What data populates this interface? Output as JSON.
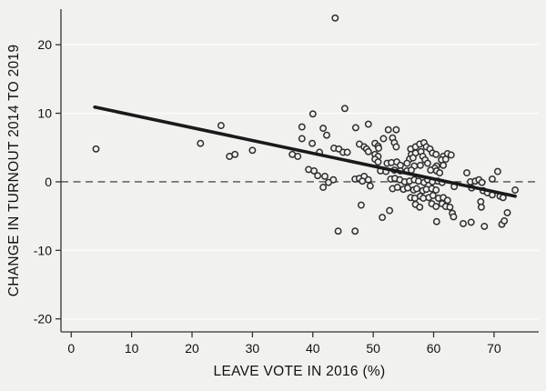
{
  "chart_data": {
    "type": "scatter",
    "title": "",
    "xlabel": "LEAVE VOTE IN 2016 (%)",
    "ylabel": "CHANGE IN TURNOUT 2014 TO 2019",
    "xlim": [
      -1.7,
      77.4
    ],
    "ylim": [
      -21.9,
      25.2
    ],
    "x_ticks": [
      0,
      10,
      20,
      30,
      40,
      50,
      60,
      70
    ],
    "y_ticks": [
      -20,
      -10,
      0,
      10,
      20
    ],
    "grid": "horizontal-only",
    "legend": "none",
    "reference_line": {
      "y": 0,
      "style": "dashed"
    },
    "fit_line": {
      "x1": 3.9,
      "y1": 10.9,
      "x2": 73.5,
      "y2": -2.1,
      "description": "linear fit, slope approx -0.19"
    },
    "marker": {
      "shape": "hollow-circle",
      "radius_px": 3.2
    },
    "colors": {
      "background": "#f1f1ef",
      "grid": "#fbfbfa",
      "marker": "#2e2e2e",
      "fit_line": "#1a1a1a",
      "ref_line": "#2a2a2a",
      "axis": "#333333",
      "text": "#111111"
    },
    "points": [
      [
        4.1,
        4.8
      ],
      [
        21.4,
        5.6
      ],
      [
        24.8,
        8.2
      ],
      [
        26.2,
        3.7
      ],
      [
        27.1,
        4.0
      ],
      [
        30.0,
        4.6
      ],
      [
        43.7,
        23.9
      ],
      [
        40.0,
        9.9
      ],
      [
        45.3,
        10.7
      ],
      [
        38.2,
        8.0
      ],
      [
        41.7,
        7.8
      ],
      [
        47.1,
        7.9
      ],
      [
        49.2,
        8.4
      ],
      [
        52.5,
        7.6
      ],
      [
        53.8,
        7.6
      ],
      [
        38.2,
        6.3
      ],
      [
        39.9,
        5.6
      ],
      [
        42.3,
        6.8
      ],
      [
        36.6,
        4.0
      ],
      [
        37.5,
        3.7
      ],
      [
        41.1,
        4.3
      ],
      [
        43.5,
        4.9
      ],
      [
        44.3,
        4.8
      ],
      [
        45.0,
        4.3
      ],
      [
        45.7,
        4.3
      ],
      [
        47.7,
        5.5
      ],
      [
        48.5,
        5.1
      ],
      [
        48.9,
        4.8
      ],
      [
        49.2,
        4.4
      ],
      [
        50.3,
        5.6
      ],
      [
        50.8,
        5.2
      ],
      [
        50.9,
        4.9
      ],
      [
        50.3,
        4.0
      ],
      [
        50.8,
        3.7
      ],
      [
        50.3,
        3.3
      ],
      [
        50.8,
        2.9
      ],
      [
        51.7,
        6.3
      ],
      [
        53.2,
        6.4
      ],
      [
        53.5,
        5.7
      ],
      [
        53.8,
        5.1
      ],
      [
        56.2,
        4.8
      ],
      [
        57.0,
        5.1
      ],
      [
        57.7,
        5.5
      ],
      [
        58.4,
        5.7
      ],
      [
        58.8,
        5.1
      ],
      [
        59.4,
        4.8
      ],
      [
        56.3,
        4.0
      ],
      [
        57.0,
        4.2
      ],
      [
        57.9,
        4.4
      ],
      [
        59.8,
        4.2
      ],
      [
        60.4,
        4.0
      ],
      [
        61.6,
        3.7
      ],
      [
        62.3,
        4.1
      ],
      [
        62.9,
        3.9
      ],
      [
        56.0,
        3.3
      ],
      [
        56.6,
        3.5
      ],
      [
        58.2,
        3.7
      ],
      [
        58.6,
        3.2
      ],
      [
        61.3,
        3.2
      ],
      [
        62.0,
        3.3
      ],
      [
        52.3,
        2.7
      ],
      [
        53.0,
        2.8
      ],
      [
        53.9,
        2.9
      ],
      [
        54.5,
        2.4
      ],
      [
        55.6,
        2.7
      ],
      [
        56.8,
        2.3
      ],
      [
        57.8,
        2.4
      ],
      [
        59.0,
        2.7
      ],
      [
        60.5,
        2.3
      ],
      [
        61.6,
        2.4
      ],
      [
        60.2,
        2.0
      ],
      [
        39.3,
        1.8
      ],
      [
        40.2,
        1.6
      ],
      [
        40.8,
        0.9
      ],
      [
        51.2,
        1.6
      ],
      [
        52.1,
        1.5
      ],
      [
        53.5,
        1.7
      ],
      [
        54.5,
        1.6
      ],
      [
        55.6,
        1.6
      ],
      [
        56.3,
        1.7
      ],
      [
        59.5,
        1.7
      ],
      [
        60.5,
        1.6
      ],
      [
        61.0,
        1.3
      ],
      [
        65.5,
        1.3
      ],
      [
        70.6,
        1.5
      ],
      [
        42.0,
        0.8
      ],
      [
        43.4,
        0.3
      ],
      [
        47.0,
        0.4
      ],
      [
        47.7,
        0.5
      ],
      [
        48.5,
        0.8
      ],
      [
        48.2,
        0.1
      ],
      [
        49.2,
        0.3
      ],
      [
        42.6,
        -0.1
      ],
      [
        41.7,
        -0.8
      ],
      [
        49.5,
        -0.6
      ],
      [
        52.9,
        0.4
      ],
      [
        53.6,
        0.5
      ],
      [
        54.4,
        0.3
      ],
      [
        55.2,
        0.0
      ],
      [
        56.0,
        0.1
      ],
      [
        56.8,
        0.3
      ],
      [
        57.5,
        0.1
      ],
      [
        58.4,
        -0.1
      ],
      [
        59.0,
        0.3
      ],
      [
        59.8,
        0.0
      ],
      [
        60.7,
        0.1
      ],
      [
        61.4,
        -0.1
      ],
      [
        63.4,
        -0.7
      ],
      [
        66.1,
        0.0
      ],
      [
        66.9,
        0.1
      ],
      [
        67.5,
        0.3
      ],
      [
        68.0,
        -0.1
      ],
      [
        69.7,
        0.4
      ],
      [
        66.3,
        -0.9
      ],
      [
        53.2,
        -1.0
      ],
      [
        54.0,
        -0.8
      ],
      [
        55.0,
        -1.1
      ],
      [
        55.7,
        -0.9
      ],
      [
        56.7,
        -1.2
      ],
      [
        57.2,
        -1.0
      ],
      [
        58.2,
        -1.3
      ],
      [
        58.8,
        -1.1
      ],
      [
        59.7,
        -1.0
      ],
      [
        60.4,
        -1.2
      ],
      [
        68.2,
        -1.3
      ],
      [
        68.9,
        -1.6
      ],
      [
        69.7,
        -1.9
      ],
      [
        71.0,
        -2.1
      ],
      [
        73.5,
        -1.2
      ],
      [
        71.5,
        -2.3
      ],
      [
        56.2,
        -2.3
      ],
      [
        56.9,
        -2.4
      ],
      [
        57.8,
        -2.1
      ],
      [
        58.3,
        -2.4
      ],
      [
        59.2,
        -2.3
      ],
      [
        59.9,
        -2.0
      ],
      [
        60.8,
        -2.4
      ],
      [
        61.6,
        -2.3
      ],
      [
        62.3,
        -2.7
      ],
      [
        57.0,
        -3.3
      ],
      [
        57.7,
        -3.7
      ],
      [
        59.7,
        -3.2
      ],
      [
        60.4,
        -3.6
      ],
      [
        61.4,
        -3.2
      ],
      [
        62.0,
        -3.6
      ],
      [
        62.7,
        -3.7
      ],
      [
        67.8,
        -2.9
      ],
      [
        67.9,
        -3.7
      ],
      [
        48.0,
        -3.4
      ],
      [
        52.7,
        -4.2
      ],
      [
        63.1,
        -4.6
      ],
      [
        51.5,
        -5.2
      ],
      [
        63.3,
        -5.1
      ],
      [
        60.5,
        -5.8
      ],
      [
        44.2,
        -7.2
      ],
      [
        47.0,
        -7.2
      ],
      [
        64.9,
        -6.1
      ],
      [
        66.2,
        -5.9
      ],
      [
        68.4,
        -6.5
      ],
      [
        71.3,
        -6.2
      ],
      [
        72.2,
        -4.5
      ],
      [
        71.7,
        -5.7
      ]
    ]
  }
}
